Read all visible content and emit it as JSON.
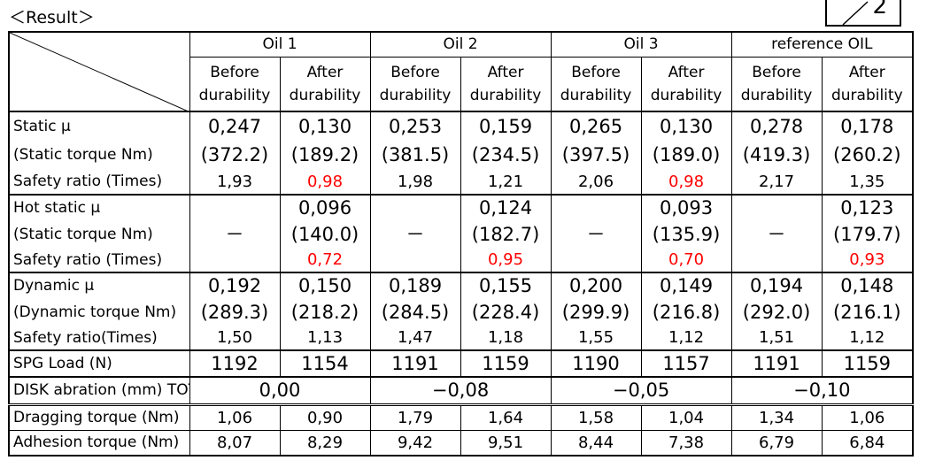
{
  "title": "＜Result＞",
  "page_number": "2",
  "groups": [
    "Oil 1",
    "Oil 2",
    "Oil 3",
    "reference OIL"
  ],
  "sub_headers": {
    "before": [
      "Before",
      "durability"
    ],
    "after": [
      "After",
      "durability"
    ]
  },
  "rows": {
    "static_mu": {
      "label": "Static μ",
      "values": [
        "0,247",
        "0,130",
        "0,253",
        "0,159",
        "0,265",
        "0,130",
        "0,278",
        "0,178"
      ]
    },
    "static_torque": {
      "label": "(Static torque Nm)",
      "values": [
        "(372.2)",
        "(189.2)",
        "(381.5)",
        "(234.5)",
        "(397.5)",
        "(189.0)",
        "(419.3)",
        "(260.2)"
      ]
    },
    "static_safety": {
      "label": "Safety ratio (Times)",
      "values": [
        "1,93",
        "0,98",
        "1,98",
        "1,21",
        "2,06",
        "0,98",
        "2,17",
        "1,35"
      ]
    },
    "hot_mu": {
      "label": "Hot static μ",
      "values": [
        "0,096",
        "0,124",
        "0,093",
        "0,123"
      ]
    },
    "hot_torque": {
      "label": "(Static torque Nm)",
      "values": [
        "(140.0)",
        "(182.7)",
        "(135.9)",
        "(179.7)"
      ]
    },
    "hot_safety": {
      "label": "Safety ratio (Times)",
      "values": [
        "0,72",
        "0,95",
        "0,70",
        "0,93"
      ]
    },
    "hot_before_dash": "－",
    "dyn_mu": {
      "label": "Dynamic μ",
      "values": [
        "0,192",
        "0,150",
        "0,189",
        "0,155",
        "0,200",
        "0,149",
        "0,194",
        "0,148"
      ]
    },
    "dyn_torque": {
      "label": "(Dynamic torque Nm)",
      "values": [
        "(289.3)",
        "(218.2)",
        "(284.5)",
        "(228.4)",
        "(299.9)",
        "(216.8)",
        "(292.0)",
        "(216.1)"
      ]
    },
    "dyn_safety": {
      "label": "Safety ratio(Times)",
      "values": [
        "1,50",
        "1,13",
        "1,47",
        "1,18",
        "1,55",
        "1,12",
        "1,51",
        "1,12"
      ]
    },
    "spg": {
      "label": "SPG Load (N)",
      "values": [
        "1192",
        "1154",
        "1191",
        "1159",
        "1190",
        "1157",
        "1191",
        "1159"
      ]
    },
    "disk": {
      "label": "DISK abration (mm) TOTAL",
      "values": [
        "0,00",
        "−0,08",
        "−0,05",
        "−0,10"
      ]
    },
    "dragging": {
      "label": "Dragging torque (Nm)",
      "values": [
        "1,06",
        "0,90",
        "1,79",
        "1,64",
        "1,58",
        "1,04",
        "1,34",
        "1,06"
      ]
    },
    "adhesion": {
      "label": "Adhesion torque (Nm)",
      "values": [
        "8,07",
        "8,29",
        "9,42",
        "9,51",
        "8,44",
        "7,38",
        "6,79",
        "6,84"
      ]
    }
  },
  "colors": {
    "highlight": "#ff0000",
    "text": "#000000",
    "border": "#000000"
  }
}
